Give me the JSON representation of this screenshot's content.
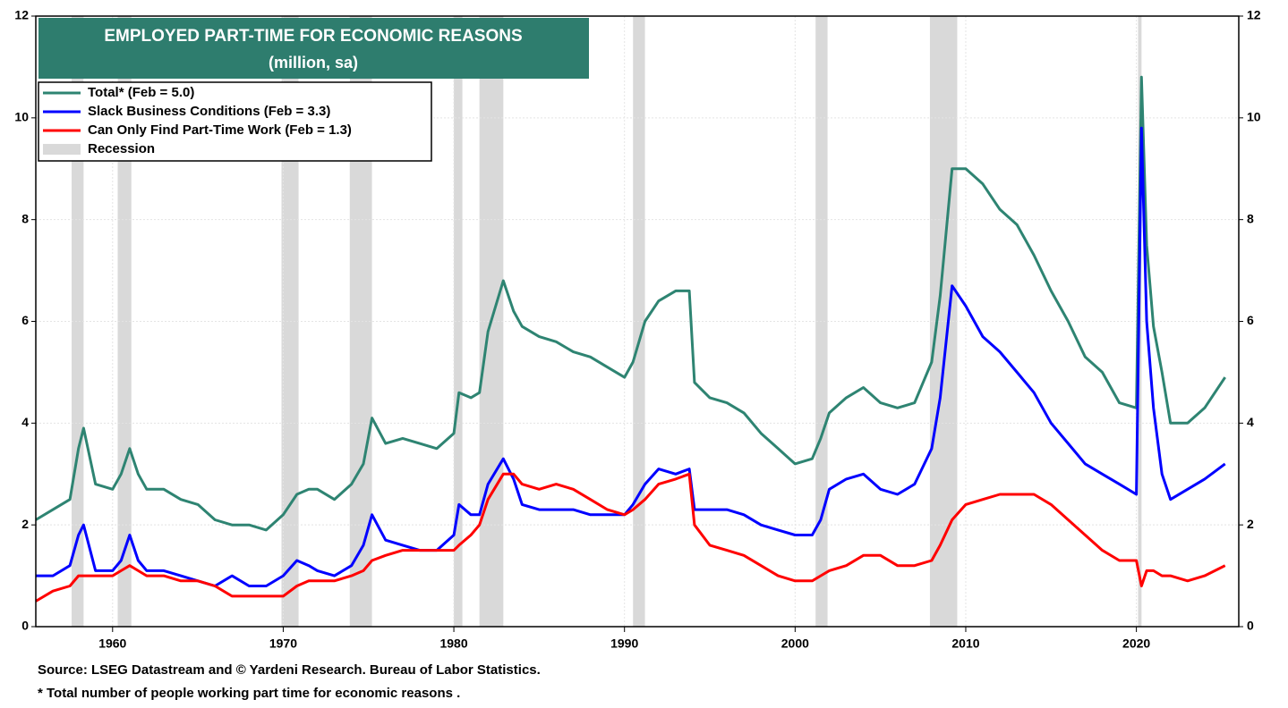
{
  "chart_data": {
    "type": "line",
    "title": "EMPLOYED PART-TIME FOR ECONOMIC REASONS",
    "subtitle": "(million, sa)",
    "x": [
      1955.5,
      1956.5,
      1957.5,
      1958.0,
      1958.3,
      1959,
      1960,
      1960.5,
      1961,
      1961.5,
      1962,
      1963,
      1964,
      1965,
      1966,
      1967,
      1968,
      1969,
      1970,
      1970.8,
      1971.5,
      1972,
      1973,
      1974,
      1974.7,
      1975.2,
      1976,
      1977,
      1978,
      1979,
      1980,
      1980.3,
      1981,
      1981.5,
      1982,
      1982.9,
      1983.5,
      1984,
      1985,
      1986,
      1987,
      1988,
      1989,
      1990,
      1990.5,
      1991.2,
      1992,
      1993,
      1993.8,
      1994.1,
      1995,
      1996,
      1997,
      1998,
      1999,
      2000,
      2001,
      2001.5,
      2002,
      2003,
      2004,
      2005,
      2006,
      2007,
      2008,
      2008.5,
      2009.2,
      2010,
      2011,
      2012,
      2013,
      2014,
      2015,
      2016,
      2017,
      2018,
      2019,
      2020.0,
      2020.3,
      2020.6,
      2021,
      2021.5,
      2022,
      2023,
      2024,
      2025.2
    ],
    "series": [
      {
        "name": "Total* (Feb = 5.0)",
        "color": "#2e8472",
        "values": [
          2.1,
          2.3,
          2.5,
          3.5,
          3.9,
          2.8,
          2.7,
          3.0,
          3.5,
          3.0,
          2.7,
          2.7,
          2.5,
          2.4,
          2.1,
          2.0,
          2.0,
          1.9,
          2.2,
          2.6,
          2.7,
          2.7,
          2.5,
          2.8,
          3.2,
          4.1,
          3.6,
          3.7,
          3.6,
          3.5,
          3.8,
          4.6,
          4.5,
          4.6,
          5.8,
          6.8,
          6.2,
          5.9,
          5.7,
          5.6,
          5.4,
          5.3,
          5.1,
          4.9,
          5.2,
          6.0,
          6.4,
          6.6,
          6.6,
          4.8,
          4.5,
          4.4,
          4.2,
          3.8,
          3.5,
          3.2,
          3.3,
          3.7,
          4.2,
          4.5,
          4.7,
          4.4,
          4.3,
          4.4,
          5.2,
          6.5,
          9.0,
          9.0,
          8.7,
          8.2,
          7.9,
          7.3,
          6.6,
          6.0,
          5.3,
          5.0,
          4.4,
          4.3,
          10.8,
          7.5,
          5.9,
          5.0,
          4.0,
          4.0,
          4.3,
          4.9
        ]
      },
      {
        "name": "Slack Business Conditions (Feb = 3.3)",
        "color": "#0000ff",
        "values": [
          1.0,
          1.0,
          1.2,
          1.8,
          2.0,
          1.1,
          1.1,
          1.3,
          1.8,
          1.3,
          1.1,
          1.1,
          1.0,
          0.9,
          0.8,
          1.0,
          0.8,
          0.8,
          1.0,
          1.3,
          1.2,
          1.1,
          1.0,
          1.2,
          1.6,
          2.2,
          1.7,
          1.6,
          1.5,
          1.5,
          1.8,
          2.4,
          2.2,
          2.2,
          2.8,
          3.3,
          2.9,
          2.4,
          2.3,
          2.3,
          2.3,
          2.2,
          2.2,
          2.2,
          2.4,
          2.8,
          3.1,
          3.0,
          3.1,
          2.3,
          2.3,
          2.3,
          2.2,
          2.0,
          1.9,
          1.8,
          1.8,
          2.1,
          2.7,
          2.9,
          3.0,
          2.7,
          2.6,
          2.8,
          3.5,
          4.5,
          6.7,
          6.3,
          5.7,
          5.4,
          5.0,
          4.6,
          4.0,
          3.6,
          3.2,
          3.0,
          2.8,
          2.6,
          9.8,
          6.0,
          4.3,
          3.0,
          2.5,
          2.7,
          2.9,
          3.2
        ]
      },
      {
        "name": "Can Only Find Part-Time Work (Feb = 1.3)",
        "color": "#ff0000",
        "values": [
          0.5,
          0.7,
          0.8,
          1.0,
          1.0,
          1.0,
          1.0,
          1.1,
          1.2,
          1.1,
          1.0,
          1.0,
          0.9,
          0.9,
          0.8,
          0.6,
          0.6,
          0.6,
          0.6,
          0.8,
          0.9,
          0.9,
          0.9,
          1.0,
          1.1,
          1.3,
          1.4,
          1.5,
          1.5,
          1.5,
          1.5,
          1.6,
          1.8,
          2.0,
          2.5,
          3.0,
          3.0,
          2.8,
          2.7,
          2.8,
          2.7,
          2.5,
          2.3,
          2.2,
          2.3,
          2.5,
          2.8,
          2.9,
          3.0,
          2.0,
          1.6,
          1.5,
          1.4,
          1.2,
          1.0,
          0.9,
          0.9,
          1.0,
          1.1,
          1.2,
          1.4,
          1.4,
          1.2,
          1.2,
          1.3,
          1.6,
          2.1,
          2.4,
          2.5,
          2.6,
          2.6,
          2.6,
          2.4,
          2.1,
          1.8,
          1.5,
          1.3,
          1.3,
          0.8,
          1.1,
          1.1,
          1.0,
          1.0,
          0.9,
          1.0,
          1.2
        ]
      }
    ],
    "recession_label": "Recession",
    "recession_color": "#d9d9d9",
    "recessions": [
      [
        1957.6,
        1958.3
      ],
      [
        1960.3,
        1961.1
      ],
      [
        1969.9,
        1970.9
      ],
      [
        1973.9,
        1975.2
      ],
      [
        1980.0,
        1980.5
      ],
      [
        1981.5,
        1982.9
      ],
      [
        1990.5,
        1991.2
      ],
      [
        2001.2,
        2001.9
      ],
      [
        2007.9,
        2009.5
      ],
      [
        2020.1,
        2020.3
      ]
    ],
    "xlim": [
      1955.5,
      2026
    ],
    "xticks": [
      1960,
      1970,
      1980,
      1990,
      2000,
      2010,
      2020
    ],
    "ylim": [
      0,
      12
    ],
    "yticks": [
      0,
      2,
      4,
      6,
      8,
      10,
      12
    ],
    "y2lim": [
      0,
      12
    ],
    "y2ticks": [
      0,
      2,
      4,
      6,
      8,
      10,
      12
    ],
    "grid": true,
    "legend": "upper left",
    "notes": [
      "Source: LSEG Datastream and © Yardeni Research. Bureau of Labor Statistics.",
      "* Total number of people working part time for economic reasons ."
    ]
  }
}
